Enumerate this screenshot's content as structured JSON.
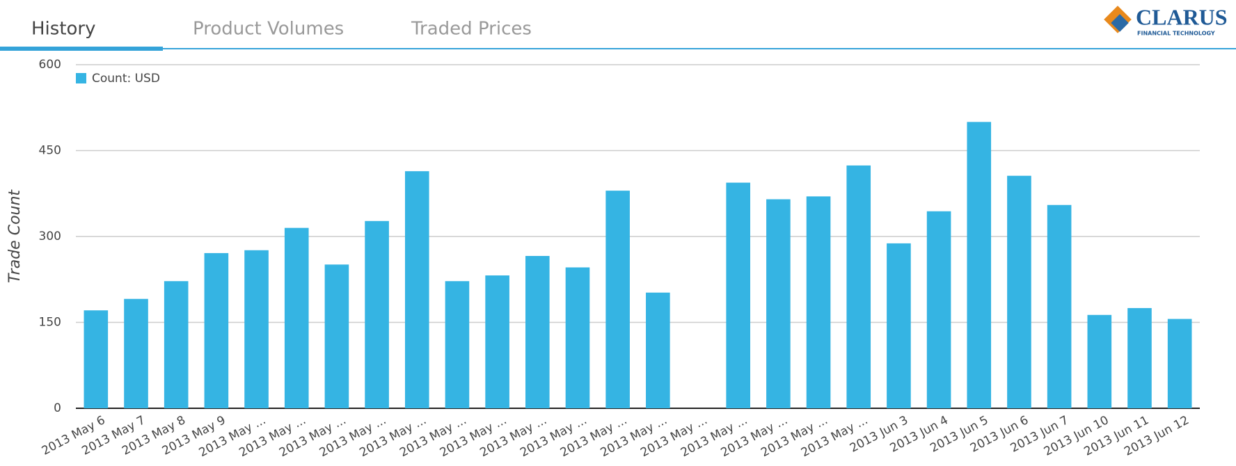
{
  "tabs": [
    "History",
    "Product Volumes",
    "Traded Prices"
  ],
  "logo": {
    "name": "CLARUS",
    "tagline": "FINANCIAL TECHNOLOGY"
  },
  "chart_data": {
    "type": "bar",
    "y_label": "Trade Count",
    "categories": [
      "2013 May 6",
      "2013 May 7",
      "2013 May 8",
      "2013 May 9",
      "2013 May ...",
      "2013 May ...",
      "2013 May ...",
      "2013 May ...",
      "2013 May ...",
      "2013 May ...",
      "2013 May ...",
      "2013 May ...",
      "2013 May ...",
      "2013 May ...",
      "2013 May ...",
      "2013 May ...",
      "2013 May ...",
      "2013 May ...",
      "2013 May ...",
      "2013 May ...",
      "2013 Jun 3",
      "2013 Jun 4",
      "2013 Jun 5",
      "2013 Jun 6",
      "2013 Jun 7",
      "2013 Jun 10",
      "2013 Jun 11",
      "2013 Jun 12"
    ],
    "series": [
      {
        "name": "Count: USD",
        "color": "#35b4e3",
        "values": [
          171,
          191,
          222,
          271,
          276,
          315,
          251,
          327,
          414,
          222,
          232,
          266,
          246,
          380,
          202,
          null,
          394,
          365,
          370,
          424,
          288,
          344,
          500,
          406,
          355,
          163,
          175,
          156
        ]
      }
    ],
    "ylim": [
      0,
      600
    ],
    "yticks": [
      0,
      150,
      300,
      450,
      600
    ],
    "grid": true,
    "legend": "top-left"
  }
}
